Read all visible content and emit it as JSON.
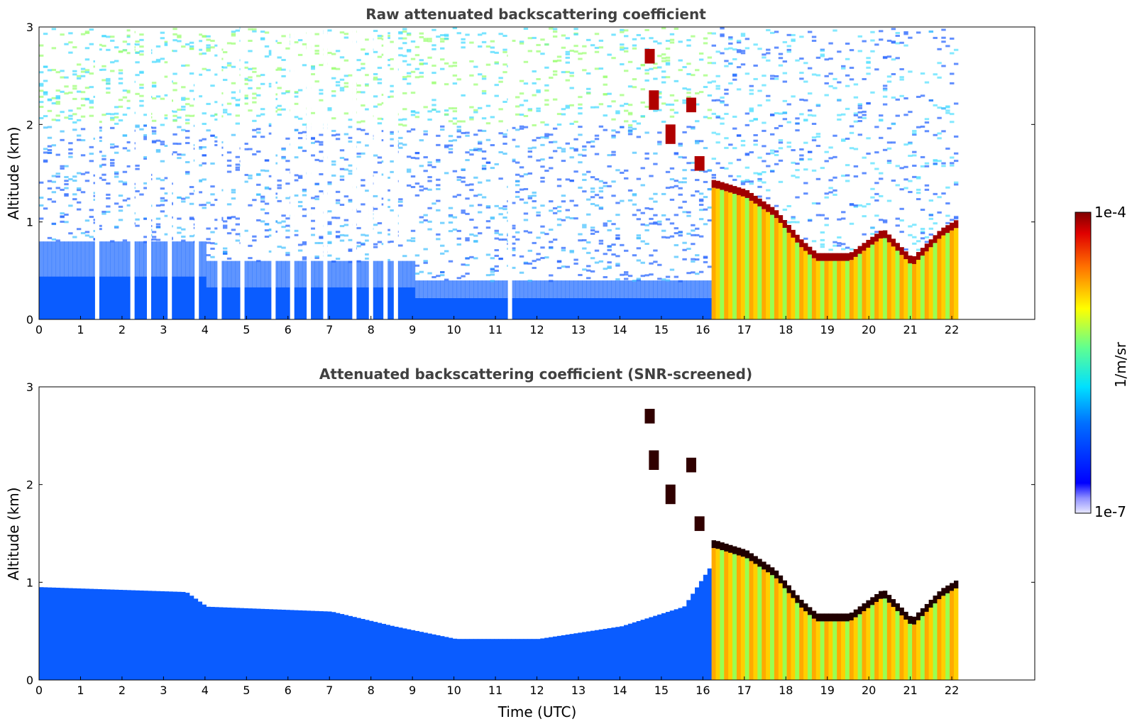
{
  "chart_data": [
    {
      "type": "heatmap",
      "title": "Raw attenuated backscattering coefficient",
      "xlabel": "",
      "ylabel": "Altitude (km)",
      "xlim": [
        0,
        24
      ],
      "ylim": [
        0,
        3
      ],
      "xticks": [
        "0",
        "1",
        "2",
        "3",
        "4",
        "5",
        "6",
        "7",
        "8",
        "9",
        "10",
        "11",
        "12",
        "13",
        "14",
        "15",
        "16",
        "17",
        "18",
        "19",
        "20",
        "21",
        "22"
      ],
      "yticks": [
        "0",
        "1",
        "2",
        "3"
      ],
      "data_end_hour": 22.15,
      "cloud_base_km": [
        {
          "t": 16.25,
          "alt": 1.35
        },
        {
          "t": 17.0,
          "alt": 1.25
        },
        {
          "t": 17.7,
          "alt": 1.05
        },
        {
          "t": 18.3,
          "alt": 0.75
        },
        {
          "t": 18.7,
          "alt": 0.6
        },
        {
          "t": 19.5,
          "alt": 0.6
        },
        {
          "t": 20.3,
          "alt": 0.85
        },
        {
          "t": 21.0,
          "alt": 0.55
        },
        {
          "t": 21.7,
          "alt": 0.85
        },
        {
          "t": 22.1,
          "alt": 0.95
        }
      ]
    },
    {
      "type": "heatmap",
      "title": "Attenuated backscattering coefficient (SNR-screened)",
      "xlabel": "Time (UTC)",
      "ylabel": "Altitude (km)",
      "xlim": [
        0,
        24
      ],
      "ylim": [
        0,
        3
      ],
      "xticks": [
        "0",
        "1",
        "2",
        "3",
        "4",
        "5",
        "6",
        "7",
        "8",
        "9",
        "10",
        "11",
        "12",
        "13",
        "14",
        "15",
        "16",
        "17",
        "18",
        "19",
        "20",
        "21",
        "22"
      ],
      "yticks": [
        "0",
        "1",
        "2",
        "3"
      ],
      "data_end_hour": 22.15,
      "boundary_layer_top_km": [
        {
          "t": 0,
          "alt": 0.95
        },
        {
          "t": 3.5,
          "alt": 0.9
        },
        {
          "t": 4,
          "alt": 0.75
        },
        {
          "t": 7,
          "alt": 0.7
        },
        {
          "t": 8.5,
          "alt": 0.55
        },
        {
          "t": 10,
          "alt": 0.42
        },
        {
          "t": 12,
          "alt": 0.42
        },
        {
          "t": 14,
          "alt": 0.55
        },
        {
          "t": 15.5,
          "alt": 0.75
        },
        {
          "t": 16.2,
          "alt": 1.2
        }
      ]
    }
  ],
  "colorbar": {
    "label": "1/m/sr",
    "max_label": "1e-4",
    "min_label": "1e-7",
    "scale": "log",
    "range": [
      1e-07,
      0.0001
    ]
  }
}
